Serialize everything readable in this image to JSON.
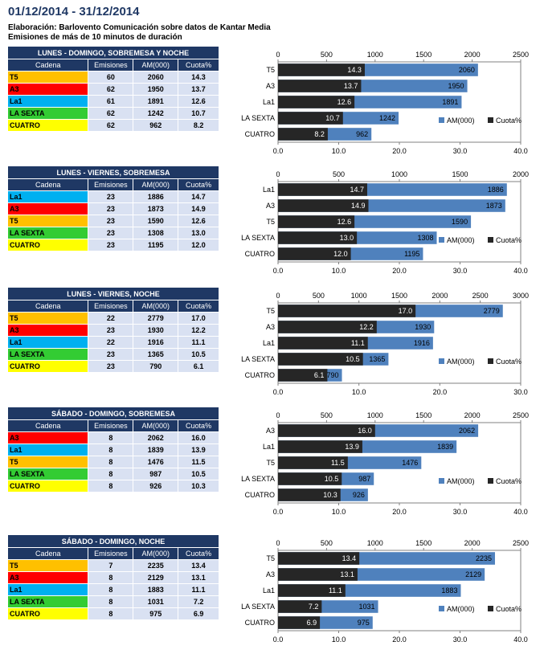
{
  "header": {
    "title": "01/12/2014 - 31/12/2014",
    "source": "Elaboración:  Barlovento Comunicación  sobre datos de Kantar Media",
    "note": "Emisiones de más de 10 minutos de duración"
  },
  "colors": {
    "T5": "#ffc000",
    "A3": "#ff0000",
    "La1": "#00b0f0",
    "LA SEXTA": "#33cc33",
    "CUATRO": "#ffff00",
    "header_bg": "#1f3864",
    "cell_bg": "#d9e1f2",
    "am_bar": "#4f81bd",
    "cuota_bar": "#262626"
  },
  "columns": [
    "Cadena",
    "Emisiones",
    "AM(000)",
    "Cuota%"
  ],
  "legend": {
    "am": "AM(000)",
    "cuota": "Cuota%"
  },
  "sections": [
    {
      "title": "LUNES - DOMINGO, SOBREMESA Y NOCHE",
      "rows": [
        {
          "cadena": "T5",
          "emisiones": "60",
          "am": "2060",
          "cuota": "14.3"
        },
        {
          "cadena": "A3",
          "emisiones": "62",
          "am": "1950",
          "cuota": "13.7"
        },
        {
          "cadena": "La1",
          "emisiones": "61",
          "am": "1891",
          "cuota": "12.6"
        },
        {
          "cadena": "LA SEXTA",
          "emisiones": "62",
          "am": "1242",
          "cuota": "10.7"
        },
        {
          "cadena": "CUATRO",
          "emisiones": "62",
          "am": "962",
          "cuota": "8.2"
        }
      ]
    },
    {
      "title": "LUNES - VIERNES, SOBREMESA",
      "rows": [
        {
          "cadena": "La1",
          "emisiones": "23",
          "am": "1886",
          "cuota": "14.7"
        },
        {
          "cadena": "A3",
          "emisiones": "23",
          "am": "1873",
          "cuota": "14.9"
        },
        {
          "cadena": "T5",
          "emisiones": "23",
          "am": "1590",
          "cuota": "12.6"
        },
        {
          "cadena": "LA SEXTA",
          "emisiones": "23",
          "am": "1308",
          "cuota": "13.0"
        },
        {
          "cadena": "CUATRO",
          "emisiones": "23",
          "am": "1195",
          "cuota": "12.0"
        }
      ]
    },
    {
      "title": "LUNES - VIERNES, NOCHE",
      "rows": [
        {
          "cadena": "T5",
          "emisiones": "22",
          "am": "2779",
          "cuota": "17.0"
        },
        {
          "cadena": "A3",
          "emisiones": "23",
          "am": "1930",
          "cuota": "12.2"
        },
        {
          "cadena": "La1",
          "emisiones": "22",
          "am": "1916",
          "cuota": "11.1"
        },
        {
          "cadena": "LA SEXTA",
          "emisiones": "23",
          "am": "1365",
          "cuota": "10.5"
        },
        {
          "cadena": "CUATRO",
          "emisiones": "23",
          "am": "790",
          "cuota": "6.1"
        }
      ]
    },
    {
      "title": "SÁBADO - DOMINGO, SOBREMESA",
      "rows": [
        {
          "cadena": "A3",
          "emisiones": "8",
          "am": "2062",
          "cuota": "16.0"
        },
        {
          "cadena": "La1",
          "emisiones": "8",
          "am": "1839",
          "cuota": "13.9"
        },
        {
          "cadena": "T5",
          "emisiones": "8",
          "am": "1476",
          "cuota": "11.5"
        },
        {
          "cadena": "LA SEXTA",
          "emisiones": "8",
          "am": "987",
          "cuota": "10.5"
        },
        {
          "cadena": "CUATRO",
          "emisiones": "8",
          "am": "926",
          "cuota": "10.3"
        }
      ]
    },
    {
      "title": "SÁBADO - DOMINGO, NOCHE",
      "rows": [
        {
          "cadena": "T5",
          "emisiones": "7",
          "am": "2235",
          "cuota": "13.4"
        },
        {
          "cadena": "A3",
          "emisiones": "8",
          "am": "2129",
          "cuota": "13.1"
        },
        {
          "cadena": "La1",
          "emisiones": "8",
          "am": "1883",
          "cuota": "11.1"
        },
        {
          "cadena": "LA SEXTA",
          "emisiones": "8",
          "am": "1031",
          "cuota": "7.2"
        },
        {
          "cadena": "CUATRO",
          "emisiones": "8",
          "am": "975",
          "cuota": "6.9"
        }
      ]
    }
  ],
  "chart_data": [
    {
      "type": "bar",
      "orientation": "horizontal",
      "categories": [
        "T5",
        "A3",
        "La1",
        "LA SEXTA",
        "CUATRO"
      ],
      "series": [
        {
          "name": "AM(000)",
          "values": [
            2060,
            1950,
            1891,
            1242,
            962
          ]
        },
        {
          "name": "Cuota%",
          "values": [
            14.3,
            13.7,
            12.6,
            10.7,
            8.2
          ]
        }
      ],
      "top_axis": {
        "ticks": [
          "0",
          "500",
          "1000",
          "1500",
          "2000",
          "2500"
        ],
        "range": [
          0,
          2500
        ]
      },
      "bottom_axis": {
        "ticks": [
          "0.0",
          "10.0",
          "20.0",
          "30.0",
          "40.0"
        ],
        "range": [
          0,
          40
        ]
      },
      "legend_position": "bottom-right"
    },
    {
      "type": "bar",
      "orientation": "horizontal",
      "categories": [
        "La1",
        "A3",
        "T5",
        "LA SEXTA",
        "CUATRO"
      ],
      "series": [
        {
          "name": "AM(000)",
          "values": [
            1886,
            1873,
            1590,
            1308,
            1195
          ]
        },
        {
          "name": "Cuota%",
          "values": [
            14.7,
            14.9,
            12.6,
            13.0,
            12.0
          ]
        }
      ],
      "top_axis": {
        "ticks": [
          "0",
          "500",
          "1000",
          "1500",
          "2000"
        ],
        "range": [
          0,
          2000
        ]
      },
      "bottom_axis": {
        "ticks": [
          "0.0",
          "10.0",
          "20.0",
          "30.0",
          "40.0"
        ],
        "range": [
          0,
          40
        ]
      },
      "legend_position": "bottom-right"
    },
    {
      "type": "bar",
      "orientation": "horizontal",
      "categories": [
        "T5",
        "A3",
        "La1",
        "LA SEXTA",
        "CUATRO"
      ],
      "series": [
        {
          "name": "AM(000)",
          "values": [
            2779,
            1930,
            1916,
            1365,
            790
          ]
        },
        {
          "name": "Cuota%",
          "values": [
            17.0,
            12.2,
            11.1,
            10.5,
            6.1
          ]
        }
      ],
      "top_axis": {
        "ticks": [
          "0",
          "500",
          "1000",
          "1500",
          "2000",
          "2500",
          "3000"
        ],
        "range": [
          0,
          3000
        ]
      },
      "bottom_axis": {
        "ticks": [
          "0.0",
          "10.0",
          "20.0",
          "30.0"
        ],
        "range": [
          0,
          30
        ]
      },
      "legend_position": "bottom-right"
    },
    {
      "type": "bar",
      "orientation": "horizontal",
      "categories": [
        "A3",
        "La1",
        "T5",
        "LA SEXTA",
        "CUATRO"
      ],
      "series": [
        {
          "name": "AM(000)",
          "values": [
            2062,
            1839,
            1476,
            987,
            926
          ]
        },
        {
          "name": "Cuota%",
          "values": [
            16.0,
            13.9,
            11.5,
            10.5,
            10.3
          ]
        }
      ],
      "top_axis": {
        "ticks": [
          "0",
          "500",
          "1000",
          "1500",
          "2000",
          "2500"
        ],
        "range": [
          0,
          2500
        ]
      },
      "bottom_axis": {
        "ticks": [
          "0.0",
          "10.0",
          "20.0",
          "30.0",
          "40.0"
        ],
        "range": [
          0,
          40
        ]
      },
      "legend_position": "bottom-right"
    },
    {
      "type": "bar",
      "orientation": "horizontal",
      "categories": [
        "T5",
        "A3",
        "La1",
        "LA SEXTA",
        "CUATRO"
      ],
      "series": [
        {
          "name": "AM(000)",
          "values": [
            2235,
            2129,
            1883,
            1031,
            975
          ]
        },
        {
          "name": "Cuota%",
          "values": [
            13.4,
            13.1,
            11.1,
            7.2,
            6.9
          ]
        }
      ],
      "top_axis": {
        "ticks": [
          "0",
          "500",
          "1000",
          "1500",
          "2000",
          "2500"
        ],
        "range": [
          0,
          2500
        ]
      },
      "bottom_axis": {
        "ticks": [
          "0.0",
          "10.0",
          "20.0",
          "30.0",
          "40.0"
        ],
        "range": [
          0,
          40
        ]
      },
      "legend_position": "bottom-right"
    }
  ]
}
